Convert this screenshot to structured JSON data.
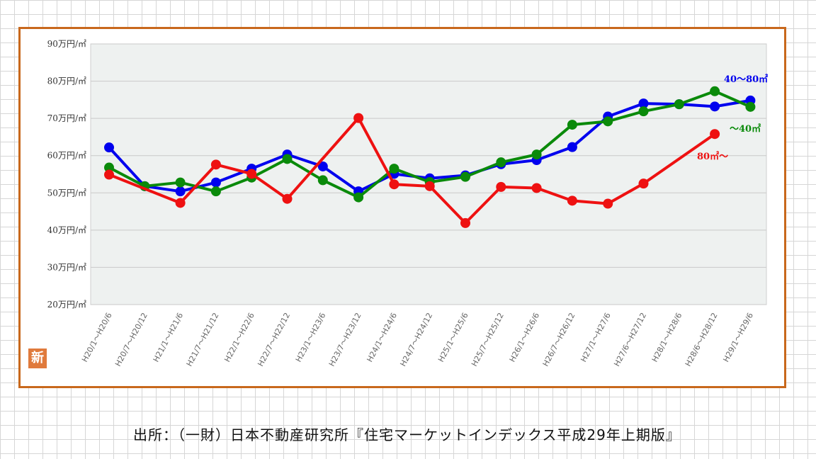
{
  "source_text": "出所：（一財）日本不動産研究所『住宅マーケットインデックス平成29年上期版』",
  "badge": "新",
  "chart_data": {
    "type": "line",
    "title": "",
    "xlabel": "",
    "ylabel": "",
    "ylim": [
      20,
      90
    ],
    "y_ticks": [
      20,
      30,
      40,
      50,
      60,
      70,
      80,
      90
    ],
    "y_tick_labels": [
      "20万円/㎡",
      "30万円/㎡",
      "40万円/㎡",
      "50万円/㎡",
      "60万円/㎡",
      "70万円/㎡",
      "80万円/㎡",
      "90万円/㎡"
    ],
    "grid": true,
    "categories": [
      "H20/1〜H20/6",
      "H20/7〜H20/12",
      "H21/1〜H21/6",
      "H21/7〜H21/12",
      "H22/1〜H22/6",
      "H22/7〜H22/12",
      "H23/1〜H23/6",
      "H23/7〜H23/12",
      "H24/1〜H24/6",
      "H24/7〜H24/12",
      "H25/1〜H25/6",
      "H25/7〜H25/12",
      "H26/1〜H26/6",
      "H26/7〜H26/12",
      "H27/1〜H27/6",
      "H27/6〜H27/12",
      "H28/1〜H28/6",
      "H28/6〜H28/12",
      "H29/1〜H29/6"
    ],
    "series": [
      {
        "name": "40〜80㎡",
        "color": "#0000ee",
        "values": [
          62.2,
          51.8,
          50.4,
          52.8,
          56.5,
          60.3,
          57.1,
          50.4,
          55.1,
          53.9,
          54.7,
          57.7,
          58.8,
          62.3,
          70.5,
          74.0,
          73.8,
          73.2,
          74.8
        ]
      },
      {
        "name": "〜40㎡",
        "color": "#0a8a0a",
        "values": [
          56.8,
          51.8,
          52.8,
          50.4,
          54.1,
          59.1,
          53.4,
          48.8,
          56.5,
          52.9,
          54.3,
          58.2,
          60.3,
          68.3,
          69.2,
          71.9,
          73.8,
          77.3,
          73.1
        ]
      },
      {
        "name": "80㎡〜",
        "color": "#ee1111",
        "values": [
          54.9,
          null,
          47.3,
          57.6,
          55.1,
          48.4,
          null,
          70.1,
          52.3,
          51.8,
          41.9,
          51.6,
          51.3,
          47.9,
          47.1,
          52.5,
          null,
          65.8,
          null
        ]
      }
    ]
  }
}
